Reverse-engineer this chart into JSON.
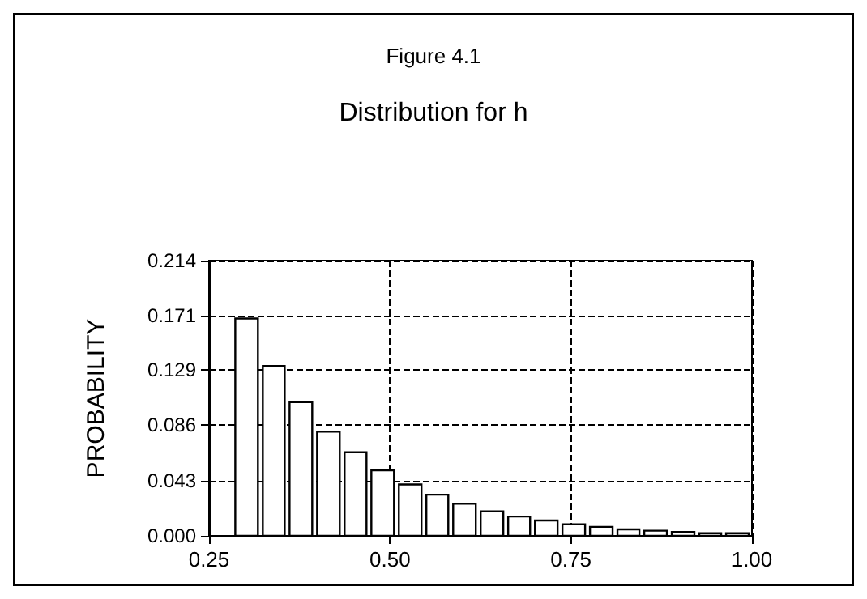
{
  "chart_data": {
    "type": "histogram",
    "title": "Figure 4.1",
    "subtitle": "Distribution for h",
    "ylabel": "PROBABILITY",
    "bins": [
      0.284,
      0.322,
      0.359,
      0.397,
      0.435,
      0.472,
      0.51,
      0.548,
      0.585,
      0.623,
      0.661,
      0.698,
      0.736,
      0.774,
      0.812,
      0.849,
      0.887,
      0.925,
      0.962,
      1.0
    ],
    "values": [
      0.169,
      0.132,
      0.104,
      0.081,
      0.065,
      0.051,
      0.04,
      0.032,
      0.025,
      0.019,
      0.015,
      0.012,
      0.009,
      0.007,
      0.005,
      0.004,
      0.003,
      0.002,
      0.002
    ],
    "color": "#ffffff",
    "xlim": [
      0.25,
      1.0
    ],
    "xticks": [
      {
        "value": 0.25,
        "label": "0.25"
      },
      {
        "value": 0.5,
        "label": "0.50"
      },
      {
        "value": 0.75,
        "label": "0.75"
      },
      {
        "value": 1.0,
        "label": "1.00"
      }
    ],
    "ylim": [
      0,
      0.214
    ],
    "yticks": [
      {
        "value": 0,
        "label": "0.000"
      },
      {
        "value": 0.043,
        "label": "0.043"
      },
      {
        "value": 0.086,
        "label": "0.086"
      },
      {
        "value": 0.129,
        "label": "0.129"
      },
      {
        "value": 0.171,
        "label": "0.171"
      },
      {
        "value": 0.214,
        "label": "0.214"
      }
    ],
    "grid": true,
    "line_style": "dashed"
  }
}
